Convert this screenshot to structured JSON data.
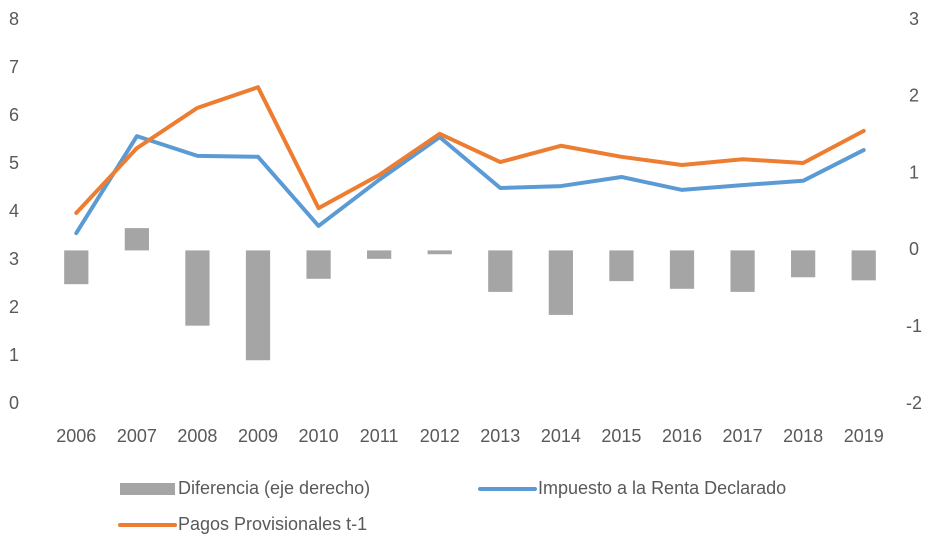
{
  "chart_data": {
    "type": "bar",
    "categories": [
      "2006",
      "2007",
      "2008",
      "2009",
      "2010",
      "2011",
      "2012",
      "2013",
      "2014",
      "2015",
      "2016",
      "2017",
      "2018",
      "2019"
    ],
    "series": [
      {
        "name": "Diferencia (eje derecho)",
        "type": "bar",
        "axis": "y2",
        "color": "#a5a5a5",
        "values": [
          -0.44,
          0.29,
          -0.98,
          -1.43,
          -0.37,
          -0.11,
          -0.05,
          -0.54,
          -0.84,
          -0.4,
          -0.5,
          -0.54,
          -0.35,
          -0.39
        ]
      },
      {
        "name": "Impuesto a la Renta Declarado",
        "type": "line",
        "color": "#5b9bd5",
        "values": [
          3.56,
          5.58,
          5.17,
          5.15,
          3.71,
          4.67,
          5.56,
          4.5,
          4.54,
          4.73,
          4.46,
          4.56,
          4.65,
          5.29
        ]
      },
      {
        "name": "Pagos Provisionales t-1",
        "type": "line",
        "color": "#ed7d31",
        "values": [
          3.98,
          5.33,
          6.17,
          6.6,
          4.08,
          4.77,
          5.63,
          5.04,
          5.38,
          5.15,
          4.98,
          5.1,
          5.02,
          5.69
        ]
      }
    ],
    "ylim": [
      0,
      8
    ],
    "yticks": [
      0,
      1,
      2,
      3,
      4,
      5,
      6,
      7,
      8
    ],
    "y2lim": [
      -2,
      3
    ],
    "y2ticks": [
      -2,
      -1,
      0,
      1,
      2,
      3
    ],
    "grid": false
  }
}
